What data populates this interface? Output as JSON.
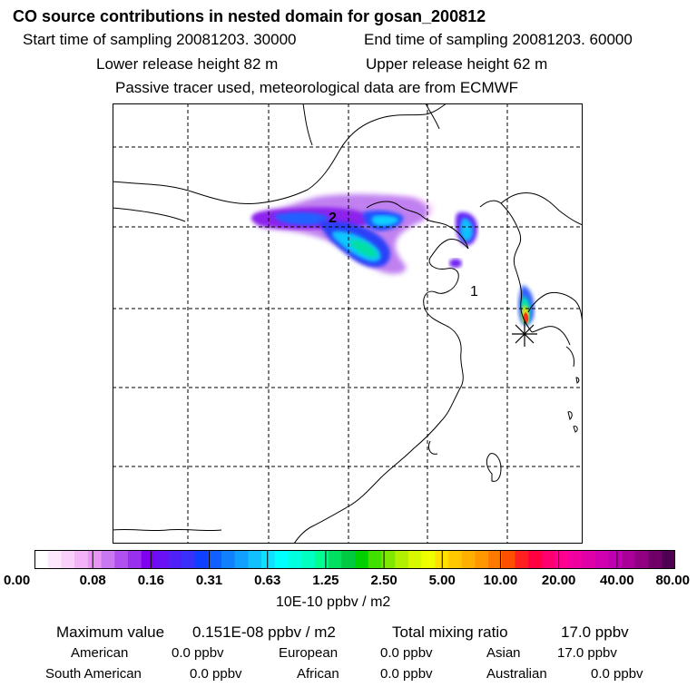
{
  "header": {
    "title": "CO  source contributions in nested domain for gosan_200812",
    "start_label": "Start time of sampling 20081203. 30000",
    "end_label": "End time of sampling 20081203. 60000",
    "lower_release": "Lower release height   82 m",
    "upper_release": "Upper release height   62 m",
    "note": "Passive tracer used, meteorological data are from ECMWF"
  },
  "map": {
    "markers": {
      "first": "1",
      "second": "2"
    },
    "receptor_icon": "star-asterisk-icon"
  },
  "legend": {
    "tick_labels": [
      "0.00",
      "0.08",
      "0.16",
      "0.31",
      "0.63",
      "1.25",
      "2.50",
      "5.00",
      "10.00",
      "20.00",
      "40.00",
      "80.00"
    ],
    "unit": "10E-10 ppbv / m2",
    "colors": [
      "#ffffff",
      "#fde8fd",
      "#f8d0fa",
      "#f2b4f6",
      "#e896f4",
      "#c878f0",
      "#b050ee",
      "#9830ec",
      "#8000f0",
      "#6a10f4",
      "#5020f8",
      "#3a30fc",
      "#1040ff",
      "#1060ff",
      "#1080ff",
      "#10a0ff",
      "#10c0ff",
      "#10e0ff",
      "#00ffff",
      "#00ffe0",
      "#00ffc0",
      "#00ff90",
      "#00e060",
      "#00c840",
      "#00d000",
      "#40e000",
      "#80e800",
      "#b0f000",
      "#d8f800",
      "#f0ff00",
      "#ffe000",
      "#ffc800",
      "#ffb000",
      "#ff9800",
      "#ff7800",
      "#ff5000",
      "#ff2020",
      "#ff0040",
      "#ff0070",
      "#ff0090",
      "#f000a0",
      "#e000a8",
      "#d000b0",
      "#c000b0",
      "#a80098",
      "#900080",
      "#700068",
      "#500050"
    ]
  },
  "footer": {
    "max_label": "Maximum value",
    "max_value": "0.151E-08 ppbv / m2",
    "total_label": "Total mixing ratio",
    "total_value": "17.0 ppbv",
    "sources": [
      {
        "name": "American",
        "value": "0.0 ppbv"
      },
      {
        "name": "European",
        "value": "0.0 ppbv"
      },
      {
        "name": "Asian",
        "value": "17.0 ppbv"
      },
      {
        "name": "South American",
        "value": "0.0 ppbv"
      },
      {
        "name": "African",
        "value": "0.0 ppbv"
      },
      {
        "name": "Australian",
        "value": "0.0 ppbv"
      }
    ]
  }
}
